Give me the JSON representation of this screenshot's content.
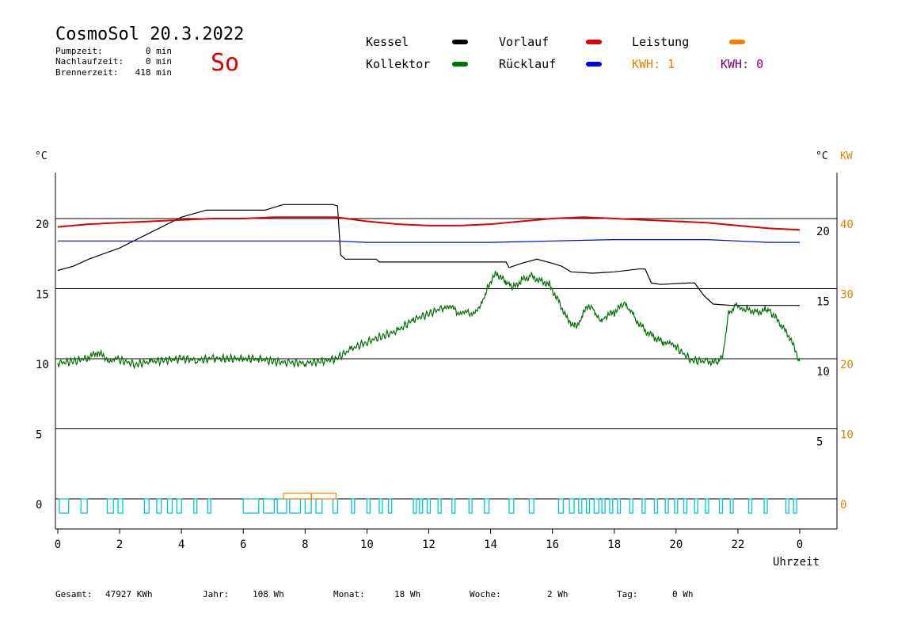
{
  "header": {
    "title": "CosmoSol 20.3.2022",
    "day": "So",
    "stats": [
      {
        "label": "Pumpzeit:",
        "value": "0 min"
      },
      {
        "label": "Nachlaufzeit:",
        "value": "0 min"
      },
      {
        "label": "Brennerzeit:",
        "value": "418 min"
      }
    ]
  },
  "legend": {
    "kessel": "Kessel",
    "vorlauf": "Vorlauf",
    "leistung": "Leistung",
    "kollektor": "Kollektor",
    "ruecklauf": "Rücklauf",
    "kwh1": "KWH: 1",
    "kwh2": "KWH: 0"
  },
  "colors": {
    "kessel": "#000000",
    "vorlauf": "#e00000",
    "leistung": "#ff8000",
    "kollektor": "#007000",
    "ruecklauf": "#0000e0",
    "kwh1": "#e08000",
    "kwh2": "#800080",
    "pump": "#00c8c8",
    "title": "#e00000"
  },
  "footer": {
    "gesamt_label": "Gesamt:",
    "gesamt_value": "47927 KWh",
    "jahr_label": "Jahr:",
    "jahr_value": "108 Wh",
    "monat_label": "Monat:",
    "monat_value": "18 Wh",
    "woche_label": "Woche:",
    "woche_value": "2 Wh",
    "tag_label": "Tag:",
    "tag_value": "0 Wh"
  },
  "chart_data": {
    "type": "line",
    "xlabel": "Uhrzeit",
    "ylabel_left": "°C",
    "ylabel_right": "°C",
    "ylabel_right2": "KW",
    "x_ticks": [
      "0",
      "2",
      "4",
      "6",
      "8",
      "10",
      "12",
      "14",
      "16",
      "18",
      "20",
      "22",
      "0"
    ],
    "xlim": [
      0,
      24
    ],
    "ylim": [
      -1.7,
      23.5
    ],
    "grid_y": [
      0,
      5,
      10,
      15,
      20
    ],
    "left_ticks": [
      "0",
      "5",
      "10",
      "15",
      "20"
    ],
    "right_ticks": [
      "5",
      "10",
      "15",
      "20"
    ],
    "right2_ticks": [
      "0",
      "10",
      "20",
      "30",
      "40"
    ],
    "series": [
      {
        "name": "Kessel",
        "points": [
          [
            0,
            16.3
          ],
          [
            0.5,
            16.6
          ],
          [
            1,
            17.1
          ],
          [
            2,
            17.9
          ],
          [
            3,
            19.0
          ],
          [
            4,
            20.1
          ],
          [
            4.8,
            20.6
          ],
          [
            5,
            20.6
          ],
          [
            6.7,
            20.6
          ],
          [
            7.3,
            21.0
          ],
          [
            8.5,
            21.0
          ],
          [
            8.9,
            21.0
          ],
          [
            9.05,
            20.9
          ],
          [
            9.15,
            17.4
          ],
          [
            9.3,
            17.1
          ],
          [
            10.3,
            17.1
          ],
          [
            10.4,
            16.9
          ],
          [
            14.5,
            16.9
          ],
          [
            14.6,
            16.5
          ],
          [
            15,
            16.8
          ],
          [
            15.5,
            17.1
          ],
          [
            16,
            16.8
          ],
          [
            16.3,
            16.6
          ],
          [
            16.6,
            16.2
          ],
          [
            17.3,
            16.1
          ],
          [
            18,
            16.2
          ],
          [
            18.8,
            16.4
          ],
          [
            19,
            16.4
          ],
          [
            19.2,
            15.4
          ],
          [
            19.5,
            15.3
          ],
          [
            20.4,
            15.4
          ],
          [
            20.6,
            15.4
          ],
          [
            20.9,
            14.5
          ],
          [
            21.2,
            13.9
          ],
          [
            21.8,
            13.8
          ],
          [
            24,
            13.8
          ]
        ]
      },
      {
        "name": "Vorlauf",
        "points": [
          [
            0,
            19.4
          ],
          [
            1,
            19.6
          ],
          [
            2,
            19.7
          ],
          [
            3,
            19.8
          ],
          [
            4,
            19.9
          ],
          [
            5,
            20.0
          ],
          [
            6,
            20.0
          ],
          [
            7,
            20.1
          ],
          [
            8,
            20.1
          ],
          [
            9,
            20.1
          ],
          [
            10,
            19.8
          ],
          [
            11,
            19.6
          ],
          [
            12,
            19.5
          ],
          [
            13,
            19.5
          ],
          [
            14,
            19.6
          ],
          [
            15,
            19.8
          ],
          [
            16,
            20.0
          ],
          [
            17,
            20.1
          ],
          [
            18,
            20.0
          ],
          [
            19,
            19.9
          ],
          [
            20,
            19.8
          ],
          [
            21,
            19.7
          ],
          [
            22,
            19.5
          ],
          [
            23,
            19.3
          ],
          [
            24,
            19.2
          ]
        ]
      },
      {
        "name": "Rücklauf",
        "points": [
          [
            0,
            18.4
          ],
          [
            3,
            18.4
          ],
          [
            4,
            18.4
          ],
          [
            6,
            18.4
          ],
          [
            8,
            18.4
          ],
          [
            9,
            18.4
          ],
          [
            10,
            18.3
          ],
          [
            12,
            18.3
          ],
          [
            14,
            18.3
          ],
          [
            16,
            18.4
          ],
          [
            18,
            18.5
          ],
          [
            19,
            18.5
          ],
          [
            20,
            18.5
          ],
          [
            21,
            18.5
          ],
          [
            22,
            18.4
          ],
          [
            23,
            18.3
          ],
          [
            24,
            18.3
          ]
        ]
      },
      {
        "name": "Kollektor",
        "points": [
          [
            0,
            9.7
          ],
          [
            0.5,
            9.8
          ],
          [
            1,
            10.1
          ],
          [
            1.3,
            10.4
          ],
          [
            1.6,
            10.0
          ],
          [
            2,
            9.9
          ],
          [
            2.5,
            9.6
          ],
          [
            3,
            9.8
          ],
          [
            3.5,
            9.9
          ],
          [
            4,
            10.0
          ],
          [
            4.5,
            9.9
          ],
          [
            5,
            10.0
          ],
          [
            5.5,
            10.0
          ],
          [
            6,
            10.0
          ],
          [
            6.5,
            10.0
          ],
          [
            7,
            9.8
          ],
          [
            7.5,
            9.7
          ],
          [
            8,
            9.7
          ],
          [
            8.5,
            9.8
          ],
          [
            9,
            10.0
          ],
          [
            9.5,
            10.7
          ],
          [
            10,
            11.2
          ],
          [
            10.5,
            11.6
          ],
          [
            11,
            12.0
          ],
          [
            11.5,
            12.8
          ],
          [
            12,
            13.2
          ],
          [
            12.5,
            13.7
          ],
          [
            12.9,
            13.4
          ],
          [
            13.3,
            13.2
          ],
          [
            13.7,
            13.8
          ],
          [
            13.9,
            15.2
          ],
          [
            14.2,
            16.1
          ],
          [
            14.5,
            15.4
          ],
          [
            14.7,
            15.0
          ],
          [
            15,
            15.6
          ],
          [
            15.3,
            15.9
          ],
          [
            15.6,
            15.6
          ],
          [
            15.9,
            15.3
          ],
          [
            16.2,
            14.1
          ],
          [
            16.5,
            12.8
          ],
          [
            16.8,
            12.2
          ],
          [
            17,
            13.4
          ],
          [
            17.3,
            13.8
          ],
          [
            17.5,
            12.8
          ],
          [
            17.7,
            13.0
          ],
          [
            18,
            13.3
          ],
          [
            18.3,
            13.9
          ],
          [
            18.5,
            13.4
          ],
          [
            18.7,
            12.8
          ],
          [
            19,
            12.0
          ],
          [
            19.3,
            11.5
          ],
          [
            19.6,
            11.1
          ],
          [
            20,
            10.8
          ],
          [
            20.5,
            9.9
          ],
          [
            21,
            9.8
          ],
          [
            21.3,
            9.8
          ],
          [
            21.5,
            10.2
          ],
          [
            21.7,
            13.3
          ],
          [
            21.9,
            13.8
          ],
          [
            22.3,
            13.6
          ],
          [
            22.6,
            13.3
          ],
          [
            22.9,
            13.5
          ],
          [
            23.1,
            13.2
          ],
          [
            23.4,
            12.4
          ],
          [
            23.7,
            11.4
          ],
          [
            24,
            9.8
          ]
        ]
      }
    ],
    "pump_pulses": [
      [
        0.05,
        0.35
      ],
      [
        0.75,
        0.95
      ],
      [
        1.6,
        1.8
      ],
      [
        1.95,
        2.1
      ],
      [
        2.8,
        2.95
      ],
      [
        3.2,
        3.35
      ],
      [
        3.55,
        3.7
      ],
      [
        3.85,
        4.0
      ],
      [
        4.4,
        4.5
      ],
      [
        4.85,
        4.95
      ],
      [
        6.0,
        6.5
      ],
      [
        6.65,
        7.0
      ],
      [
        7.1,
        7.4
      ],
      [
        7.5,
        7.85
      ],
      [
        8.0,
        8.2
      ],
      [
        8.35,
        8.55
      ],
      [
        8.9,
        9.05
      ],
      [
        9.5,
        9.6
      ],
      [
        10.0,
        10.1
      ],
      [
        10.4,
        10.5
      ],
      [
        10.7,
        10.8
      ],
      [
        11.5,
        11.6
      ],
      [
        11.7,
        11.8
      ],
      [
        11.95,
        12.05
      ],
      [
        12.3,
        12.4
      ],
      [
        12.75,
        12.85
      ],
      [
        13.3,
        13.4
      ],
      [
        13.8,
        13.95
      ],
      [
        14.6,
        14.75
      ],
      [
        15.25,
        15.4
      ],
      [
        16.2,
        16.35
      ],
      [
        16.55,
        16.7
      ],
      [
        16.85,
        16.95
      ],
      [
        17.1,
        17.2
      ],
      [
        17.35,
        17.5
      ],
      [
        17.6,
        17.7
      ],
      [
        17.85,
        17.95
      ],
      [
        18.1,
        18.2
      ],
      [
        18.5,
        18.6
      ],
      [
        18.9,
        19.0
      ],
      [
        19.3,
        19.4
      ],
      [
        19.65,
        19.75
      ],
      [
        19.95,
        20.05
      ],
      [
        20.25,
        20.35
      ],
      [
        20.6,
        20.7
      ],
      [
        20.95,
        21.05
      ],
      [
        21.4,
        21.5
      ],
      [
        21.75,
        21.85
      ],
      [
        22.35,
        22.45
      ],
      [
        22.85,
        22.95
      ],
      [
        23.55,
        23.65
      ],
      [
        23.8,
        23.9
      ]
    ],
    "leistung_pulses": [
      [
        7.3,
        8.2
      ],
      [
        8.2,
        9.0
      ]
    ]
  }
}
